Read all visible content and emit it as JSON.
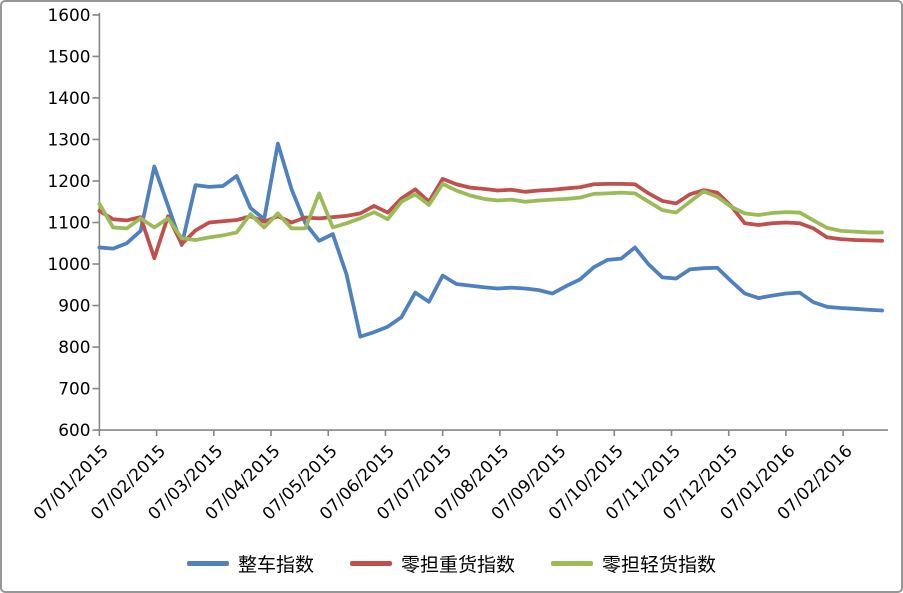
{
  "chart_data": {
    "type": "line",
    "title": "",
    "xlabel": "",
    "ylabel": "",
    "ylim": [
      600,
      1600
    ],
    "ytick_step": 100,
    "grid": false,
    "legend_position": "bottom",
    "axis_color": "#868686",
    "text_color": "#000000",
    "frame_border_color": "#979797",
    "y_tick_labels": [
      "600",
      "700",
      "800",
      "900",
      "1000",
      "1100",
      "1200",
      "1300",
      "1400",
      "1500",
      "1600"
    ],
    "x_tick_labels": [
      "07/01/2015",
      "07/02/2015",
      "07/03/2015",
      "07/04/2015",
      "07/05/2015",
      "07/06/2015",
      "07/07/2015",
      "07/08/2015",
      "07/09/2015",
      "07/10/2015",
      "07/11/2015",
      "07/12/2015",
      "07/01/2016",
      "07/02/2016"
    ],
    "x_unit": "weekly points from 07/01/2015 to 07/02/2016",
    "series": [
      {
        "name": "整车指数",
        "color": "#4F81BD",
        "values": [
          1040,
          1037,
          1050,
          1080,
          1235,
          1140,
          1046,
          1190,
          1186,
          1188,
          1212,
          1135,
          1108,
          1290,
          1180,
          1098,
          1056,
          1072,
          975,
          825,
          836,
          849,
          872,
          931,
          909,
          972,
          952,
          948,
          944,
          941,
          943,
          941,
          937,
          929,
          947,
          963,
          992,
          1010,
          1013,
          1040,
          999,
          968,
          965,
          987,
          990,
          991,
          959,
          929,
          918,
          924,
          929,
          931,
          908,
          897,
          894,
          892,
          890,
          888
        ]
      },
      {
        "name": "零担重货指数",
        "color": "#C0504D",
        "values": [
          1128,
          1108,
          1105,
          1113,
          1014,
          1115,
          1048,
          1081,
          1100,
          1103,
          1106,
          1115,
          1102,
          1115,
          1100,
          1112,
          1110,
          1113,
          1116,
          1122,
          1140,
          1124,
          1158,
          1180,
          1150,
          1205,
          1192,
          1184,
          1181,
          1177,
          1179,
          1174,
          1177,
          1179,
          1182,
          1185,
          1192,
          1193,
          1193,
          1192,
          1170,
          1152,
          1146,
          1168,
          1178,
          1172,
          1140,
          1098,
          1094,
          1098,
          1100,
          1098,
          1086,
          1064,
          1060,
          1058,
          1057,
          1056
        ]
      },
      {
        "name": "零担轻货指数",
        "color": "#9BBB59",
        "values": [
          1145,
          1088,
          1086,
          1110,
          1088,
          1110,
          1062,
          1058,
          1064,
          1069,
          1076,
          1120,
          1088,
          1122,
          1086,
          1086,
          1170,
          1088,
          1098,
          1110,
          1125,
          1108,
          1150,
          1168,
          1142,
          1193,
          1177,
          1165,
          1157,
          1153,
          1155,
          1150,
          1153,
          1155,
          1157,
          1160,
          1169,
          1170,
          1172,
          1170,
          1150,
          1130,
          1124,
          1150,
          1175,
          1162,
          1138,
          1122,
          1118,
          1123,
          1125,
          1124,
          1105,
          1087,
          1080,
          1078,
          1076,
          1076
        ]
      }
    ]
  }
}
